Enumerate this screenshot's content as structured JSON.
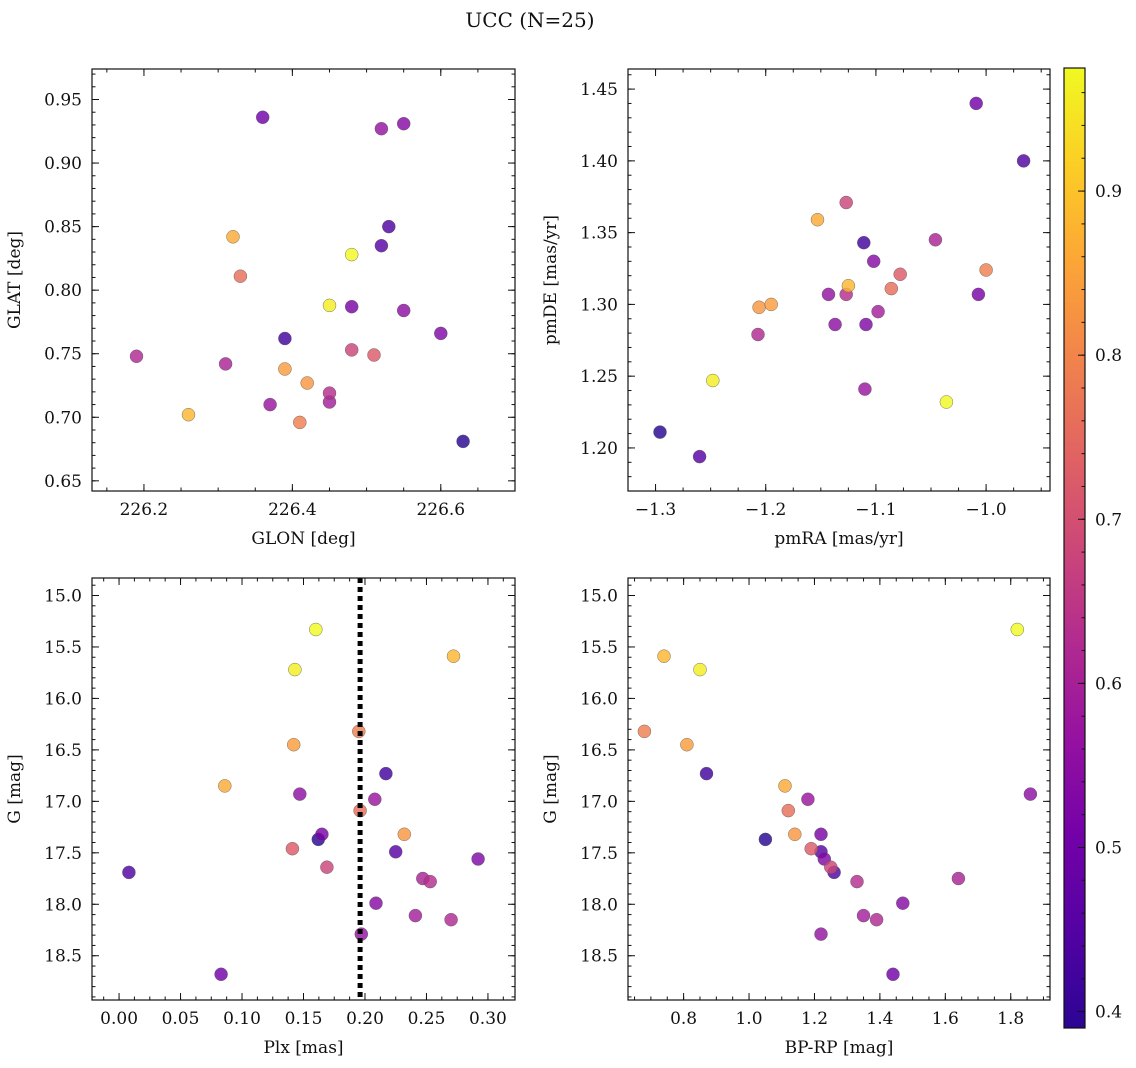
{
  "figure": {
    "title": "UCC (N=25)"
  },
  "colorbar": {
    "colormap": "plasma",
    "range": [
      0.39,
      0.975
    ],
    "ticks": [
      0.4,
      0.5,
      0.6,
      0.7,
      0.8,
      0.9
    ],
    "tick_labels": [
      "0.4",
      "0.5",
      "0.6",
      "0.7",
      "0.8",
      "0.9"
    ]
  },
  "stars": [
    {
      "glon": 226.36,
      "glat": 0.936,
      "pmra": -1.009,
      "pmde": 1.44,
      "plx": 0.083,
      "g": 18.68,
      "bprp": 1.44,
      "p": 0.52
    },
    {
      "glon": 226.52,
      "glat": 0.927,
      "pmra": -1.143,
      "pmde": 1.307,
      "plx": 0.197,
      "g": 18.29,
      "bprp": 1.22,
      "p": 0.57
    },
    {
      "glon": 226.55,
      "glat": 0.931,
      "pmra": -1.102,
      "pmde": 1.33,
      "plx": 0.209,
      "g": 17.99,
      "bprp": 1.47,
      "p": 0.55
    },
    {
      "glon": 226.53,
      "glat": 0.85,
      "pmra": -0.966,
      "pmde": 1.4,
      "plx": 0.008,
      "g": 17.69,
      "bprp": 1.26,
      "p": 0.47
    },
    {
      "glon": 226.52,
      "glat": 0.835,
      "pmra": -1.26,
      "pmde": 1.194,
      "plx": 0.225,
      "g": 17.49,
      "bprp": 1.22,
      "p": 0.48
    },
    {
      "glon": 226.63,
      "glat": 0.681,
      "pmra": -1.296,
      "pmde": 1.211,
      "plx": 0.162,
      "g": 17.37,
      "bprp": 1.05,
      "p": 0.42
    },
    {
      "glon": 226.39,
      "glat": 0.762,
      "pmra": -1.111,
      "pmde": 1.343,
      "plx": 0.217,
      "g": 16.73,
      "bprp": 0.87,
      "p": 0.45
    },
    {
      "glon": 226.6,
      "glat": 0.766,
      "pmra": -1.109,
      "pmde": 1.286,
      "plx": 0.292,
      "g": 17.56,
      "bprp": 1.23,
      "p": 0.54
    },
    {
      "glon": 226.55,
      "glat": 0.784,
      "pmra": -1.137,
      "pmde": 1.286,
      "plx": 0.147,
      "g": 16.93,
      "bprp": 1.86,
      "p": 0.56
    },
    {
      "glon": 226.48,
      "glat": 0.787,
      "pmra": -1.007,
      "pmde": 1.307,
      "plx": 0.165,
      "g": 17.32,
      "bprp": 1.22,
      "p": 0.53
    },
    {
      "glon": 226.37,
      "glat": 0.71,
      "pmra": -1.11,
      "pmde": 1.241,
      "plx": 0.208,
      "g": 16.98,
      "bprp": 1.18,
      "p": 0.58
    },
    {
      "glon": 226.45,
      "glat": 0.712,
      "pmra": -1.098,
      "pmde": 1.295,
      "plx": 0.241,
      "g": 18.11,
      "bprp": 1.35,
      "p": 0.6
    },
    {
      "glon": 226.31,
      "glat": 0.742,
      "pmra": -1.046,
      "pmde": 1.345,
      "plx": 0.247,
      "g": 17.75,
      "bprp": 1.64,
      "p": 0.61
    },
    {
      "glon": 226.19,
      "glat": 0.748,
      "pmra": -1.207,
      "pmde": 1.279,
      "plx": 0.27,
      "g": 18.15,
      "bprp": 1.39,
      "p": 0.62
    },
    {
      "glon": 226.45,
      "glat": 0.719,
      "pmra": -1.127,
      "pmde": 1.307,
      "plx": 0.253,
      "g": 17.78,
      "bprp": 1.33,
      "p": 0.63
    },
    {
      "glon": 226.48,
      "glat": 0.753,
      "pmra": -1.127,
      "pmde": 1.371,
      "plx": 0.169,
      "g": 17.64,
      "bprp": 1.25,
      "p": 0.68
    },
    {
      "glon": 226.51,
      "glat": 0.749,
      "pmra": -1.078,
      "pmde": 1.321,
      "plx": 0.141,
      "g": 17.46,
      "bprp": 1.19,
      "p": 0.72
    },
    {
      "glon": 226.33,
      "glat": 0.811,
      "pmra": -1.086,
      "pmde": 1.311,
      "plx": 0.196,
      "g": 17.09,
      "bprp": 1.12,
      "p": 0.76
    },
    {
      "glon": 226.41,
      "glat": 0.696,
      "pmra": -1.0,
      "pmde": 1.324,
      "plx": 0.195,
      "g": 16.32,
      "bprp": 0.68,
      "p": 0.79
    },
    {
      "glon": 226.42,
      "glat": 0.727,
      "pmra": -1.206,
      "pmde": 1.298,
      "plx": 0.232,
      "g": 17.32,
      "bprp": 1.14,
      "p": 0.83
    },
    {
      "glon": 226.39,
      "glat": 0.738,
      "pmra": -1.195,
      "pmde": 1.3,
      "plx": 0.142,
      "g": 16.45,
      "bprp": 0.81,
      "p": 0.84
    },
    {
      "glon": 226.32,
      "glat": 0.842,
      "pmra": -1.153,
      "pmde": 1.359,
      "plx": 0.086,
      "g": 16.85,
      "bprp": 1.11,
      "p": 0.86
    },
    {
      "glon": 226.26,
      "glat": 0.702,
      "pmra": -1.125,
      "pmde": 1.313,
      "plx": 0.272,
      "g": 15.59,
      "bprp": 0.74,
      "p": 0.88
    },
    {
      "glon": 226.45,
      "glat": 0.788,
      "pmra": -1.248,
      "pmde": 1.247,
      "plx": 0.143,
      "g": 15.72,
      "bprp": 0.85,
      "p": 0.96
    },
    {
      "glon": 226.48,
      "glat": 0.828,
      "pmra": -1.036,
      "pmde": 1.232,
      "plx": 0.16,
      "g": 15.33,
      "bprp": 1.82,
      "p": 0.975
    }
  ],
  "chart_data": [
    {
      "type": "scatter",
      "x_field": "glon",
      "y_field": "glat",
      "xlabel": "GLON [deg]",
      "ylabel": "GLAT [deg]",
      "xlim": [
        226.13,
        226.7
      ],
      "ylim": [
        0.642,
        0.974
      ],
      "y_inverted": false,
      "xticks": [
        226.2,
        226.4,
        226.6
      ],
      "xtick_labels": [
        "226.2",
        "226.4",
        "226.6"
      ],
      "yticks": [
        0.65,
        0.7,
        0.75,
        0.8,
        0.85,
        0.9,
        0.95
      ],
      "ytick_labels": [
        "0.65",
        "0.70",
        "0.75",
        "0.80",
        "0.85",
        "0.90",
        "0.95"
      ]
    },
    {
      "type": "scatter",
      "x_field": "pmra",
      "y_field": "pmde",
      "xlabel": "pmRA [mas/yr]",
      "ylabel": "pmDE [mas/yr]",
      "xlim": [
        -1.325,
        -0.942
      ],
      "ylim": [
        1.17,
        1.464
      ],
      "y_inverted": false,
      "xticks": [
        -1.3,
        -1.2,
        -1.1,
        -1.0
      ],
      "xtick_labels": [
        "−1.3",
        "−1.2",
        "−1.1",
        "−1.0"
      ],
      "yticks": [
        1.2,
        1.25,
        1.3,
        1.35,
        1.4,
        1.45
      ],
      "ytick_labels": [
        "1.20",
        "1.25",
        "1.30",
        "1.35",
        "1.40",
        "1.45"
      ]
    },
    {
      "type": "scatter",
      "x_field": "plx",
      "y_field": "g",
      "xlabel": "Plx [mas]",
      "ylabel": "G [mag]",
      "xlim": [
        -0.022,
        0.322
      ],
      "ylim": [
        18.93,
        14.83
      ],
      "y_inverted": true,
      "vline": {
        "x": 0.196,
        "style": "dotted"
      },
      "xticks": [
        0.0,
        0.05,
        0.1,
        0.15,
        0.2,
        0.25,
        0.3
      ],
      "xtick_labels": [
        "0.00",
        "0.05",
        "0.10",
        "0.15",
        "0.20",
        "0.25",
        "0.30"
      ],
      "yticks": [
        15.0,
        15.5,
        16.0,
        16.5,
        17.0,
        17.5,
        18.0,
        18.5
      ],
      "ytick_labels": [
        "15.0",
        "15.5",
        "16.0",
        "16.5",
        "17.0",
        "17.5",
        "18.0",
        "18.5"
      ]
    },
    {
      "type": "scatter",
      "x_field": "bprp",
      "y_field": "g",
      "xlabel": "BP-RP [mag]",
      "ylabel": "G [mag]",
      "xlim": [
        0.63,
        1.92
      ],
      "ylim": [
        18.93,
        14.83
      ],
      "y_inverted": true,
      "xticks": [
        0.8,
        1.0,
        1.2,
        1.4,
        1.6,
        1.8
      ],
      "xtick_labels": [
        "0.8",
        "1.0",
        "1.2",
        "1.4",
        "1.6",
        "1.8"
      ],
      "yticks": [
        15.0,
        15.5,
        16.0,
        16.5,
        17.0,
        17.5,
        18.0,
        18.5
      ],
      "ytick_labels": [
        "15.0",
        "15.5",
        "16.0",
        "16.5",
        "17.0",
        "17.5",
        "18.0",
        "18.5"
      ]
    }
  ]
}
